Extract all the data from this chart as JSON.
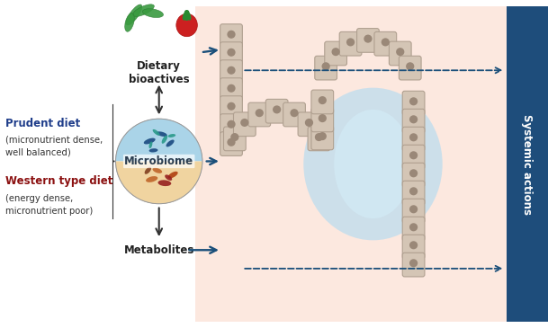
{
  "bg_color": "#ffffff",
  "prudent_diet_color": "#1f3d8a",
  "western_diet_color": "#8b1010",
  "arrow_color": "#1a4f7a",
  "systemic_bar_color": "#1e4d7b",
  "systemic_text": "Systemic actions",
  "prudent_text": "Prudent diet",
  "prudent_sub": "(micronutrient dense,\nwell balanced)",
  "western_text": "Western type diet",
  "western_sub": "(energy dense,\nmicronutrient poor)",
  "bioactives_text": "Dietary\nbioactives",
  "microbiome_text": "Microbiome",
  "metabolites_text": "Metabolites",
  "cell_color": "#d4c5b5",
  "cell_edge_color": "#b0a090",
  "cell_inner_color": "#9a8878",
  "lumen_blue": "#c8e8f5",
  "bg_pink": "#fce8e0"
}
